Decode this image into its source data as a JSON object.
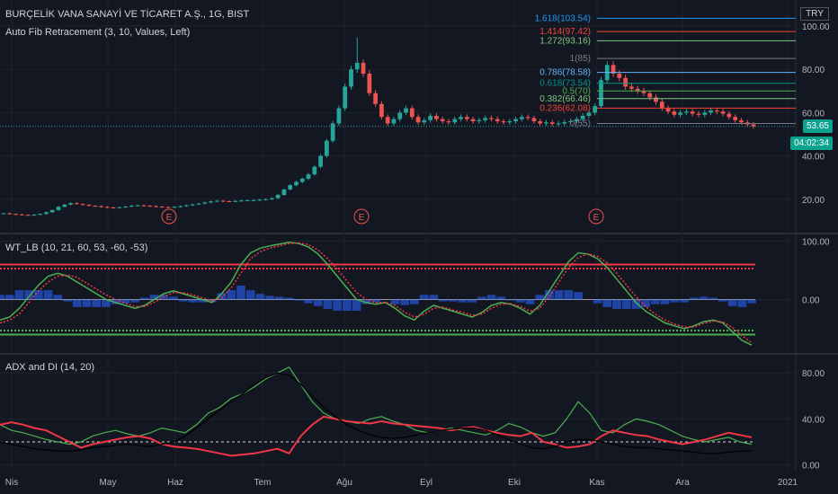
{
  "header": {
    "symbol_line": "BURÇELİK VANA SANAYİ VE TİCARET A.Ş., 1G, BIST",
    "fib_line": "Auto Fib Retracement (3, 10, Values, Left)",
    "wt_line": "WT_LB (10, 21, 60, 53, -60, -53)",
    "adx_line": "ADX and DI (14, 20)",
    "currency": "TRY",
    "price_tag": "53.65",
    "time_tag": "04:02:34"
  },
  "colors": {
    "background": "#131722",
    "up": "#26a69a",
    "down": "#ef5350",
    "grid": "#1e222d",
    "axis_text": "#b2b5be",
    "red_line": "#f23645",
    "green_line": "#4caf50",
    "blue_hist": "#2962ff",
    "fib_1618": "#2196f3",
    "fib_1414": "#f44336",
    "fib_1272": "#81c784",
    "fib_1": "#787b86",
    "fib_0786": "#64b5f6",
    "fib_0618": "#009688",
    "fib_05": "#4caf50",
    "fib_0382": "#81c784",
    "fib_0236": "#f44336",
    "fib_0": "#787b86"
  },
  "x_axis": {
    "labels": [
      "Nis",
      "May",
      "Haz",
      "Tem",
      "Ağu",
      "Eyl",
      "Eki",
      "Kas",
      "Ara",
      "2021"
    ]
  },
  "chart_data": [
    {
      "type": "candlestick",
      "title": "BURÇELİK VANA SANAYİ VE TİCARET A.Ş., 1G, BIST",
      "ylim": [
        5,
        112
      ],
      "y_ticks": [
        20,
        40,
        60,
        80,
        100
      ],
      "y_tick_labels": [
        "20.00",
        "40.00",
        "60.00",
        "80.00",
        "100.00"
      ],
      "earnings_markers": [
        "E",
        "E",
        "E"
      ],
      "close_approx": [
        13.5,
        13.2,
        13.0,
        12.8,
        12.6,
        12.9,
        13.2,
        14.0,
        15.0,
        16.5,
        17.5,
        18.2,
        17.8,
        17.4,
        17.0,
        16.8,
        16.5,
        16.2,
        16.0,
        16.3,
        16.6,
        17.0,
        17.2,
        17.0,
        16.8,
        16.6,
        16.4,
        16.2,
        16.5,
        16.8,
        17.2,
        17.6,
        18.0,
        18.5,
        19.0,
        19.3,
        19.1,
        19.0,
        19.2,
        19.4,
        19.5,
        19.6,
        19.8,
        20.0,
        20.5,
        22.0,
        24.5,
        26.5,
        28.0,
        29.5,
        31.5,
        35.0,
        40.0,
        47.0,
        55.0,
        62.0,
        72.0,
        80.0,
        83.0,
        78.0,
        69.0,
        64.0,
        58.0,
        55.0,
        57.0,
        60.0,
        62.0,
        58.0,
        55.5,
        56.5,
        58.5,
        57.0,
        56.0,
        55.5,
        57.0,
        58.0,
        57.0,
        56.0,
        56.5,
        57.5,
        57.0,
        56.0,
        55.5,
        56.0,
        57.0,
        58.0,
        57.5,
        56.0,
        55.0,
        55.5,
        54.8,
        55.0,
        55.6,
        56.0,
        57.0,
        58.5,
        60.0,
        63.0,
        75.0,
        82.0,
        78.0,
        76.0,
        72.0,
        71.0,
        70.0,
        69.0,
        67.0,
        65.0,
        62.0,
        60.5,
        59.0,
        60.0,
        60.5,
        59.5,
        59.0,
        60.0,
        61.0,
        60.5,
        59.5,
        58.0,
        56.5,
        55.5,
        54.5,
        53.65
      ],
      "fib_levels": [
        {
          "ratio": "1.618",
          "value": 103.54,
          "label": "1.618(103.54)"
        },
        {
          "ratio": "1.414",
          "value": 97.42,
          "label": "1.414(97.42)"
        },
        {
          "ratio": "1.272",
          "value": 93.16,
          "label": "1.272(93.16)"
        },
        {
          "ratio": "1",
          "value": 85,
          "label": "1(85)"
        },
        {
          "ratio": "0.786",
          "value": 78.58,
          "label": "0.786(78.58)"
        },
        {
          "ratio": "0.618",
          "value": 73.54,
          "label": "0.618(73.54)"
        },
        {
          "ratio": "0.5",
          "value": 70,
          "label": "0.5(70)"
        },
        {
          "ratio": "0.382",
          "value": 66.46,
          "label": "0.382(66.46)"
        },
        {
          "ratio": "0.236",
          "value": 62.08,
          "label": "0.236(62.08)"
        },
        {
          "ratio": "0",
          "value": 55,
          "label": "0(55)"
        }
      ],
      "last_price": 53.65
    },
    {
      "type": "line",
      "title": "WT_LB (10, 21, 60, 53, -60, -53)",
      "ylim": [
        -90,
        110
      ],
      "y_ticks": [
        100,
        0
      ],
      "y_tick_labels": [
        "100.00",
        "0.00"
      ],
      "levels": {
        "ob1": 60,
        "ob2": 53,
        "os1": -60,
        "os2": -53
      },
      "series": [
        {
          "role": "wt1",
          "values": [
            -35,
            -30,
            -15,
            5,
            25,
            40,
            45,
            40,
            30,
            20,
            10,
            0,
            -5,
            -10,
            -15,
            -10,
            0,
            10,
            15,
            10,
            5,
            0,
            -5,
            10,
            30,
            60,
            80,
            88,
            92,
            95,
            98,
            96,
            90,
            78,
            60,
            40,
            20,
            0,
            -5,
            -8,
            -5,
            -15,
            -28,
            -35,
            -20,
            -10,
            -15,
            -20,
            -25,
            -30,
            -22,
            -10,
            -5,
            -8,
            -15,
            -25,
            -10,
            15,
            40,
            65,
            80,
            78,
            70,
            55,
            35,
            15,
            -5,
            -20,
            -30,
            -40,
            -45,
            -50,
            -45,
            -38,
            -35,
            -40,
            -55,
            -70,
            -78
          ]
        },
        {
          "role": "wt2",
          "values": [
            -40,
            -35,
            -25,
            -5,
            15,
            30,
            40,
            42,
            38,
            28,
            18,
            8,
            0,
            -6,
            -12,
            -12,
            -5,
            5,
            12,
            12,
            8,
            3,
            -2,
            3,
            20,
            45,
            70,
            82,
            88,
            92,
            96,
            97,
            94,
            85,
            70,
            52,
            32,
            12,
            0,
            -5,
            -5,
            -10,
            -22,
            -30,
            -25,
            -15,
            -13,
            -18,
            -22,
            -27,
            -25,
            -15,
            -8,
            -7,
            -12,
            -20,
            -15,
            5,
            30,
            55,
            72,
            78,
            74,
            63,
            45,
            25,
            5,
            -12,
            -25,
            -35,
            -42,
            -47,
            -47,
            -41,
            -37,
            -38,
            -48,
            -62,
            -74
          ]
        }
      ]
    },
    {
      "type": "line",
      "title": "ADX and DI (14, 20)",
      "ylim": [
        -5,
        95
      ],
      "y_ticks": [
        80,
        40,
        0
      ],
      "y_tick_labels": [
        "80.00",
        "40.00",
        "0.00"
      ],
      "threshold": 20,
      "series": [
        {
          "role": "+DI",
          "values": [
            35,
            30,
            28,
            25,
            22,
            20,
            18,
            20,
            25,
            28,
            30,
            27,
            25,
            28,
            32,
            30,
            28,
            35,
            45,
            50,
            58,
            62,
            68,
            75,
            80,
            85,
            70,
            55,
            45,
            40,
            38,
            36,
            40,
            42,
            38,
            35,
            30,
            28,
            30,
            32,
            30,
            28,
            26,
            30,
            36,
            33,
            28,
            25,
            28,
            40,
            55,
            45,
            30,
            28,
            35,
            40,
            38,
            35,
            30,
            25,
            22,
            20,
            22,
            24,
            20,
            18
          ]
        },
        {
          "role": "-DI",
          "values": [
            35,
            37,
            35,
            32,
            30,
            25,
            20,
            15,
            18,
            20,
            22,
            24,
            25,
            23,
            18,
            16,
            15,
            14,
            12,
            10,
            8,
            9,
            10,
            12,
            14,
            10,
            25,
            35,
            42,
            40,
            38,
            37,
            36,
            38,
            36,
            35,
            34,
            33,
            32,
            30,
            32,
            33,
            30,
            28,
            26,
            25,
            28,
            20,
            18,
            15,
            16,
            18,
            25,
            30,
            28,
            26,
            25,
            22,
            20,
            18,
            20,
            22,
            25,
            28,
            26,
            24
          ]
        },
        {
          "role": "ADX",
          "values": [
            20,
            18,
            16,
            14,
            13,
            12,
            12,
            13,
            15,
            16,
            17,
            18,
            17,
            16,
            18,
            20,
            25,
            32,
            40,
            48,
            55,
            62,
            70,
            76,
            80,
            78,
            70,
            60,
            50,
            42,
            35,
            30,
            26,
            24,
            23,
            24,
            26,
            28,
            30,
            31,
            32,
            32,
            30,
            26,
            22,
            18,
            15,
            14,
            16,
            20,
            22,
            22,
            20,
            18,
            16,
            15,
            15,
            14,
            13,
            12,
            11,
            10,
            10,
            11,
            12,
            12
          ]
        }
      ]
    }
  ]
}
